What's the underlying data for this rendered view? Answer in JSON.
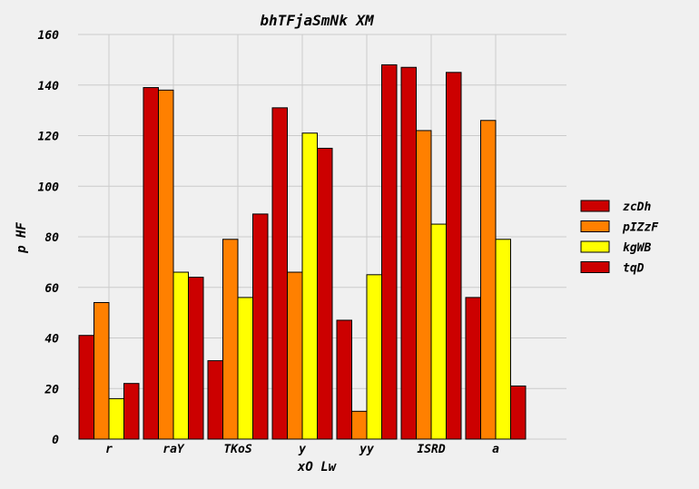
{
  "chart_data": {
    "type": "bar",
    "title": "bhTFjaSmNk XM",
    "xlabel": "xO Lw",
    "ylabel": "p HF",
    "categories": [
      "r",
      "raY",
      "TKoS",
      "y",
      "yy",
      "ISRD",
      "a"
    ],
    "series": [
      {
        "name": "zcDh",
        "color": "#cc0000",
        "values": [
          41,
          139,
          31,
          131,
          47,
          147,
          56
        ]
      },
      {
        "name": "pIZzF",
        "color": "#ff8000",
        "values": [
          54,
          138,
          79,
          66,
          11,
          122,
          126
        ]
      },
      {
        "name": "kgWB",
        "color": "#ffff00",
        "values": [
          16,
          66,
          56,
          121,
          65,
          85,
          79
        ]
      },
      {
        "name": "tqD",
        "color": "#cc0000",
        "values": [
          22,
          64,
          89,
          115,
          148,
          145,
          21
        ]
      }
    ],
    "ylim": [
      0,
      160
    ],
    "yticks": [
      0,
      20,
      40,
      60,
      80,
      100,
      120,
      140,
      160
    ],
    "grid": true,
    "legend_position": "right"
  }
}
